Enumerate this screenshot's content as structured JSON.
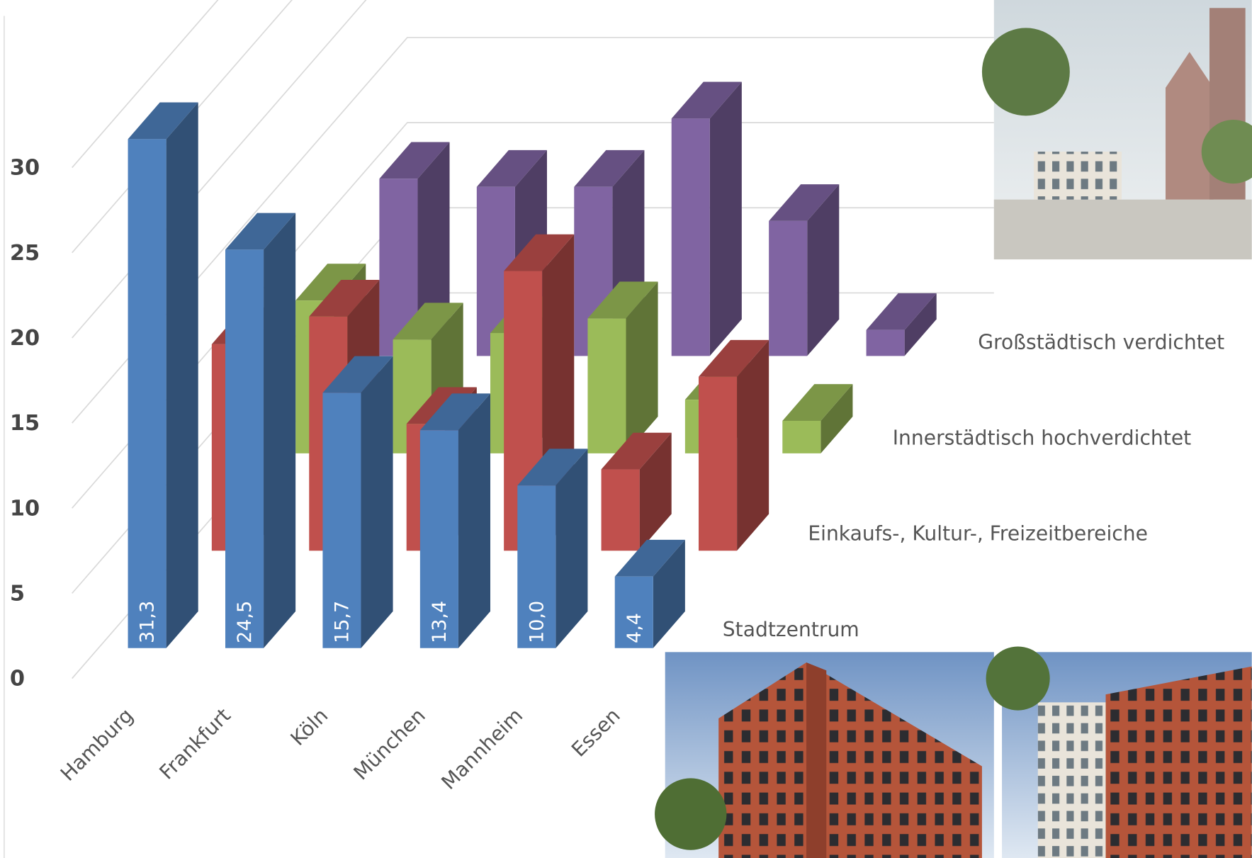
{
  "chart_data": {
    "type": "bar3d",
    "categories": [
      "Hamburg",
      "Frankfurt",
      "Köln",
      "München",
      "Mannheim",
      "Essen"
    ],
    "ylim": [
      0,
      35
    ],
    "yticks": [
      0,
      5,
      10,
      15,
      20,
      25,
      30
    ],
    "grid": true,
    "series": [
      {
        "name": "Stadtzentrum",
        "color": "#4f81bd",
        "values": [
          31.3,
          24.5,
          15.7,
          13.4,
          10.0,
          4.4
        ],
        "value_labels": [
          "31,3",
          "24,5",
          "15,7",
          "13,4",
          "10,0",
          "4,4"
        ]
      },
      {
        "name": "Einkaufs-, Kultur-, Freizeitbereiche",
        "color": "#c0504d",
        "values": [
          12.7,
          14.4,
          7.8,
          17.2,
          5.0,
          10.7
        ]
      },
      {
        "name": "Innerstädtisch  hochverdichtet",
        "color": "#9bbb59",
        "values": [
          9.4,
          7.0,
          7.4,
          8.3,
          3.3,
          2.0
        ]
      },
      {
        "name": "Großstädtisch verdichtet",
        "color": "#8064a2",
        "values": [
          10.9,
          10.4,
          10.4,
          14.6,
          8.3,
          1.6
        ]
      }
    ]
  }
}
